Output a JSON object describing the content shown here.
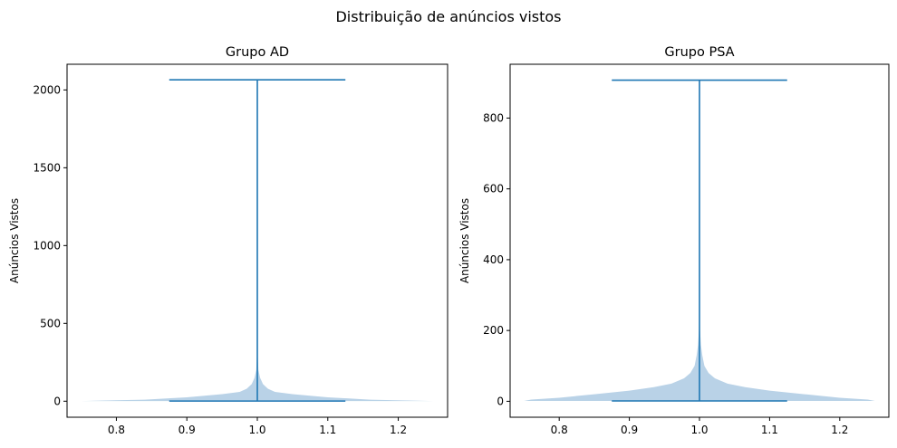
{
  "suptitle": "Distribuição de anúncios vistos",
  "colors": {
    "violin_fill": "#b9d2e7",
    "line": "#1f77b4",
    "axis": "#000000"
  },
  "chart_data": [
    {
      "type": "violin",
      "title": "Grupo AD",
      "xlabel": "",
      "ylabel": "Anúncios Vistos",
      "xlim": [
        0.73,
        1.27
      ],
      "ylim": [
        -103,
        2165
      ],
      "xticks": [
        0.8,
        0.9,
        1.0,
        1.1,
        1.2
      ],
      "xtick_labels": [
        "0.8",
        "0.9",
        "1.0",
        "1.1",
        "1.2"
      ],
      "yticks": [
        0,
        500,
        1000,
        1500,
        2000
      ],
      "ytick_labels": [
        "0",
        "500",
        "1000",
        "1500",
        "2000"
      ],
      "position": 1.0,
      "min": 1,
      "max": 2065,
      "cap_halfwidth": 0.125,
      "density_halfwidth": [
        [
          1,
          0.25
        ],
        [
          10,
          0.16
        ],
        [
          25,
          0.1
        ],
        [
          45,
          0.05
        ],
        [
          60,
          0.025
        ],
        [
          80,
          0.015
        ],
        [
          110,
          0.008
        ],
        [
          150,
          0.004
        ],
        [
          200,
          0.0015
        ],
        [
          300,
          0.0005
        ],
        [
          2065,
          0.0
        ]
      ]
    },
    {
      "type": "violin",
      "title": "Grupo PSA",
      "xlabel": "",
      "ylabel": "Anúncios Vistos",
      "xlim": [
        0.73,
        1.27
      ],
      "ylim": [
        -45,
        952
      ],
      "xticks": [
        0.8,
        0.9,
        1.0,
        1.1,
        1.2
      ],
      "xtick_labels": [
        "0.8",
        "0.9",
        "1.0",
        "1.1",
        "1.2"
      ],
      "yticks": [
        0,
        200,
        400,
        600,
        800
      ],
      "ytick_labels": [
        "0",
        "200",
        "400",
        "600",
        "800"
      ],
      "position": 1.0,
      "min": 1,
      "max": 907,
      "cap_halfwidth": 0.125,
      "density_halfwidth": [
        [
          1,
          0.25
        ],
        [
          5,
          0.24
        ],
        [
          10,
          0.2
        ],
        [
          20,
          0.15
        ],
        [
          30,
          0.1
        ],
        [
          40,
          0.065
        ],
        [
          50,
          0.04
        ],
        [
          65,
          0.022
        ],
        [
          80,
          0.013
        ],
        [
          100,
          0.007
        ],
        [
          130,
          0.004
        ],
        [
          160,
          0.002
        ],
        [
          200,
          0.0008
        ],
        [
          300,
          0.0002
        ],
        [
          907,
          0.0
        ]
      ]
    }
  ]
}
